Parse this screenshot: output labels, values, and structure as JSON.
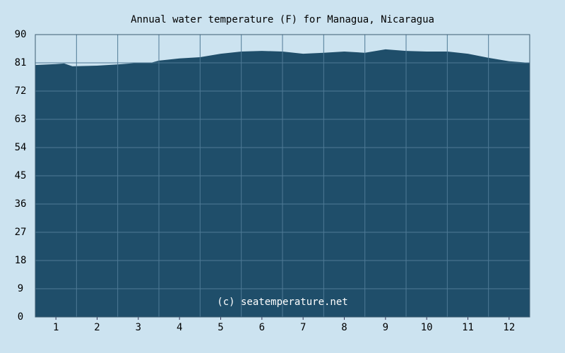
{
  "chart_data": {
    "type": "area",
    "title": "Annual water temperature (F) for Managua, Nicaragua",
    "annotation": "(c) seatemperature.net",
    "x": [
      0.5,
      1,
      1.2,
      1.4,
      2,
      2.5,
      3,
      3.3,
      3.5,
      4,
      4.5,
      5,
      5.5,
      6,
      6.5,
      7,
      7.5,
      8,
      8.5,
      9,
      9.5,
      10,
      10.5,
      11,
      11.5,
      12,
      12.5
    ],
    "series": [
      {
        "name": "Water temperature",
        "color": "#1f4e6a",
        "values": [
          80.3,
          80.6,
          80.8,
          79.9,
          80.1,
          80.5,
          81.0,
          81.0,
          81.7,
          82.4,
          82.8,
          83.9,
          84.6,
          84.8,
          84.6,
          83.9,
          84.2,
          84.6,
          84.2,
          85.3,
          84.8,
          84.6,
          84.6,
          83.9,
          82.6,
          81.5,
          81.0
        ]
      }
    ],
    "xlim": [
      0.5,
      12.5
    ],
    "xticks": [
      1,
      2,
      3,
      4,
      5,
      6,
      7,
      8,
      9,
      10,
      11,
      12
    ],
    "ylim": [
      0,
      90
    ],
    "yticks": [
      0,
      9,
      18,
      27,
      36,
      45,
      54,
      63,
      72,
      81,
      90
    ],
    "grid": true
  }
}
